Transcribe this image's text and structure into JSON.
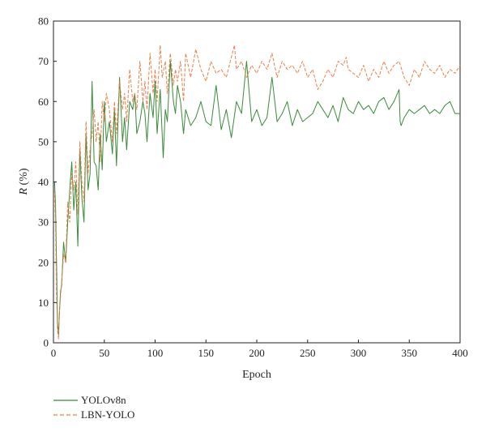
{
  "chart_data": {
    "type": "line",
    "xlabel": "Epoch",
    "ylabel_italic": "R",
    "ylabel_rest": " (%)",
    "xlim": [
      0,
      400
    ],
    "ylim": [
      0,
      80
    ],
    "xticks": [
      0,
      50,
      100,
      150,
      200,
      250,
      300,
      350,
      400
    ],
    "yticks": [
      0,
      10,
      20,
      30,
      40,
      50,
      60,
      70,
      80
    ],
    "grid": false,
    "legend_position": "bottom-left",
    "series": [
      {
        "name": "YOLOv8n",
        "color": "#3a8a3a",
        "dash": "solid",
        "x": [
          1,
          2,
          3,
          4,
          5,
          6,
          7,
          8,
          10,
          12,
          14,
          16,
          18,
          20,
          22,
          24,
          26,
          28,
          30,
          32,
          34,
          36,
          38,
          40,
          42,
          44,
          46,
          48,
          50,
          52,
          55,
          58,
          60,
          62,
          65,
          68,
          70,
          72,
          75,
          78,
          80,
          82,
          85,
          88,
          90,
          92,
          95,
          98,
          100,
          102,
          105,
          108,
          110,
          112,
          115,
          118,
          120,
          122,
          125,
          128,
          130,
          135,
          140,
          145,
          150,
          155,
          160,
          165,
          170,
          175,
          180,
          185,
          190,
          195,
          200,
          205,
          210,
          215,
          220,
          225,
          230,
          235,
          240,
          245,
          250,
          255,
          260,
          265,
          270,
          275,
          280,
          285,
          290,
          295,
          300,
          305,
          310,
          315,
          320,
          325,
          330,
          335,
          340,
          341,
          342,
          345,
          350,
          355,
          360,
          365,
          370,
          375,
          380,
          385,
          390,
          395,
          400
        ],
        "values": [
          40,
          35,
          20,
          5,
          2,
          8,
          13,
          14,
          25,
          20,
          30,
          38,
          45,
          33,
          40,
          24,
          48,
          36,
          30,
          52,
          38,
          42,
          65,
          45,
          44,
          38,
          52,
          43,
          60,
          50,
          55,
          47,
          58,
          44,
          66,
          50,
          56,
          48,
          60,
          58,
          62,
          52,
          55,
          60,
          57,
          50,
          62,
          56,
          65,
          52,
          63,
          46,
          58,
          55,
          70,
          60,
          57,
          64,
          60,
          52,
          58,
          54,
          56,
          60,
          55,
          54,
          64,
          53,
          58,
          51,
          60,
          57,
          70,
          55,
          58,
          54,
          56,
          66,
          55,
          57,
          60,
          54,
          58,
          55,
          56,
          57,
          60,
          58,
          56,
          59,
          55,
          61,
          58,
          57,
          60,
          58,
          59,
          57,
          60,
          61,
          58,
          60,
          63,
          55,
          54,
          56,
          58,
          57,
          58,
          59,
          57,
          58,
          57,
          59,
          60,
          57,
          57
        ]
      },
      {
        "name": "LBN-YOLO",
        "color": "#e8804a",
        "dash": "dashed",
        "x": [
          1,
          2,
          3,
          4,
          5,
          6,
          8,
          10,
          12,
          14,
          16,
          18,
          20,
          22,
          24,
          26,
          28,
          30,
          32,
          34,
          36,
          38,
          40,
          42,
          44,
          46,
          48,
          50,
          52,
          55,
          58,
          60,
          62,
          65,
          68,
          70,
          72,
          75,
          78,
          80,
          82,
          85,
          88,
          90,
          92,
          95,
          98,
          100,
          102,
          105,
          107,
          110,
          112,
          115,
          118,
          120,
          122,
          125,
          128,
          130,
          135,
          140,
          145,
          150,
          155,
          160,
          165,
          170,
          175,
          178,
          180,
          185,
          190,
          195,
          200,
          205,
          210,
          215,
          220,
          225,
          230,
          235,
          240,
          245,
          250,
          255,
          260,
          265,
          270,
          275,
          280,
          285,
          288,
          290,
          295,
          300,
          305,
          310,
          315,
          320,
          325,
          330,
          335,
          340,
          345,
          350,
          355,
          360,
          365,
          370,
          375,
          380,
          385,
          390,
          395,
          400
        ],
        "values": [
          38,
          30,
          12,
          3,
          1,
          8,
          15,
          22,
          20,
          35,
          30,
          42,
          38,
          45,
          32,
          50,
          40,
          35,
          55,
          42,
          48,
          52,
          58,
          50,
          55,
          45,
          60,
          55,
          62,
          58,
          50,
          60,
          52,
          65,
          58,
          62,
          55,
          68,
          60,
          62,
          58,
          70,
          60,
          65,
          58,
          72,
          62,
          68,
          60,
          74,
          66,
          70,
          62,
          72,
          64,
          68,
          65,
          70,
          60,
          72,
          66,
          73,
          68,
          65,
          70,
          67,
          68,
          66,
          71,
          74,
          68,
          70,
          66,
          69,
          67,
          70,
          68,
          72,
          66,
          70,
          68,
          69,
          67,
          70,
          66,
          68,
          63,
          65,
          68,
          66,
          70,
          69,
          71,
          68,
          67,
          66,
          69,
          65,
          68,
          66,
          70,
          67,
          69,
          70,
          66,
          64,
          68,
          66,
          70,
          68,
          67,
          69,
          66,
          68,
          67,
          69
        ]
      }
    ]
  }
}
